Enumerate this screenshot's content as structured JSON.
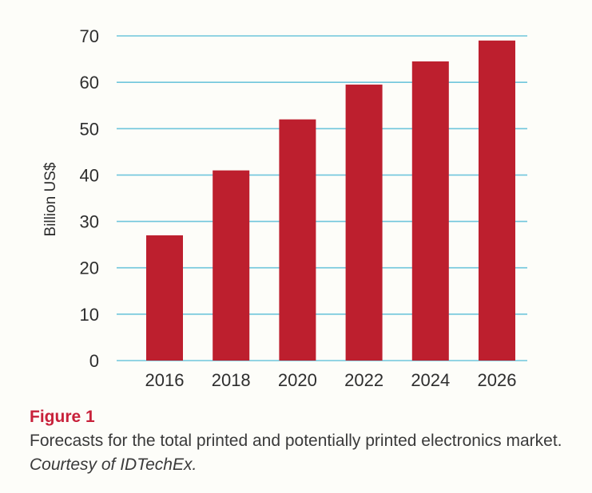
{
  "chart_data": {
    "type": "bar",
    "categories": [
      "2016",
      "2018",
      "2020",
      "2022",
      "2024",
      "2026"
    ],
    "values": [
      27,
      41,
      52,
      59.5,
      64.5,
      69
    ],
    "ylabel": "Billion US$",
    "xlabel": "",
    "ylim": [
      0,
      70
    ],
    "yticks": [
      0,
      10,
      20,
      30,
      40,
      50,
      60,
      70
    ],
    "grid": true,
    "colors": {
      "bar": "#bd1f2e",
      "grid": "#6fc6dc",
      "text": "#2e2e2e"
    }
  },
  "caption": {
    "label": "Figure 1",
    "text": "Forecasts for the total printed and potentially printed electronics market.",
    "credit": "Courtesy of IDTechEx.",
    "label_color": "#c8213a"
  }
}
